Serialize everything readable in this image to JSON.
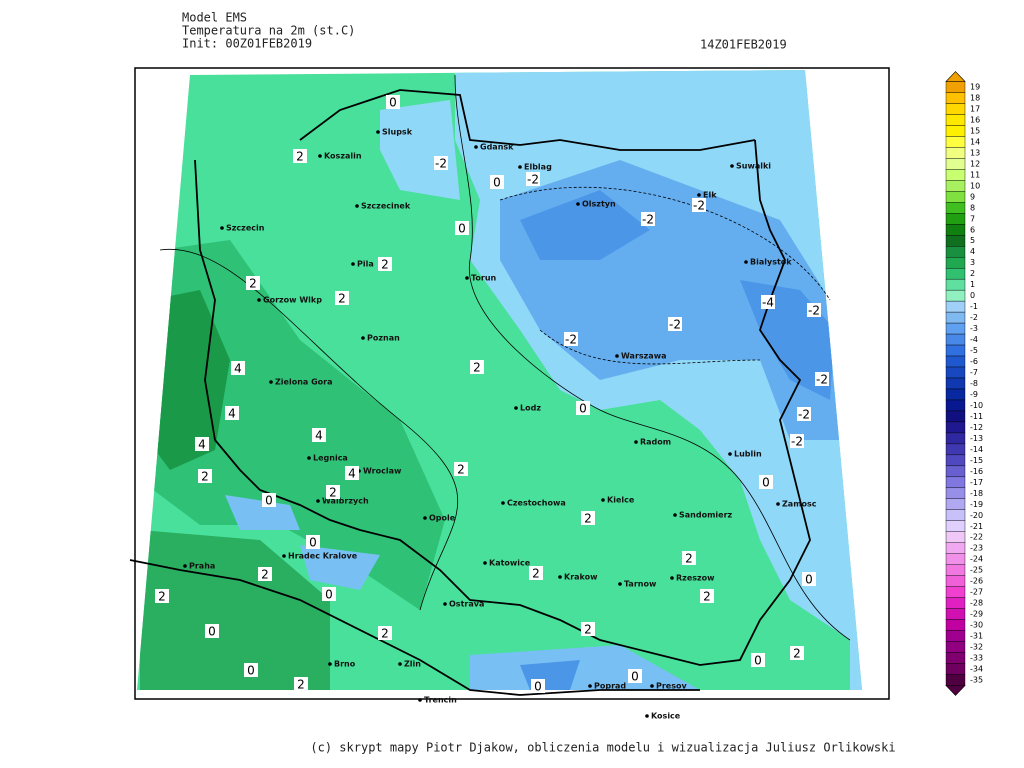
{
  "header": {
    "lines": [
      "Model EMS",
      "Temperatura na 2m (st.C)",
      "Init: 00Z01FEB2019"
    ],
    "valid_time": "14Z01FEB2019"
  },
  "map": {
    "cities": [
      "Slupsk",
      "Gdansk",
      "Koszalin",
      "Elblag",
      "Suwalki",
      "Olsztyn",
      "Elk",
      "Szczecinek",
      "Szczecin",
      "Pila",
      "Bialystok",
      "Torun",
      "Gorzow Wlkp",
      "Poznan",
      "Warszawa",
      "Zielona Gora",
      "Lodz",
      "Radom",
      "Legnica",
      "Wroclaw",
      "Lublin",
      "Walbrzych",
      "Czestochowa",
      "Kielce",
      "Opole",
      "Zamosc",
      "Sandomierz",
      "Hradec Kralove",
      "Katowice",
      "Krakow",
      "Tarnow",
      "Rzeszow",
      "Praha",
      "Ostrava",
      "Brno",
      "Zlin",
      "Poprad",
      "Presov",
      "Trencin",
      "Kosice"
    ],
    "contour_labels": [
      0,
      2,
      -2,
      0,
      -2,
      0,
      -2,
      -2,
      2,
      2,
      2,
      -4,
      -2,
      -2,
      -2,
      2,
      4,
      -2,
      0,
      4,
      -2,
      4,
      4,
      -2,
      2,
      4,
      2,
      0,
      0,
      2,
      2,
      0,
      2,
      2,
      2,
      0,
      2,
      0,
      2,
      0,
      2,
      2,
      0,
      0,
      2,
      2,
      0,
      0
    ]
  },
  "colorbar": {
    "labels": [
      19,
      18,
      17,
      16,
      15,
      14,
      13,
      12,
      11,
      10,
      9,
      8,
      7,
      6,
      5,
      4,
      3,
      2,
      1,
      0,
      -1,
      -2,
      -3,
      -4,
      -5,
      -6,
      -7,
      -8,
      -9,
      -10,
      -11,
      -12,
      -13,
      -14,
      -15,
      -16,
      -17,
      -18,
      -19,
      -20,
      -21,
      -22,
      -23,
      -24,
      -25,
      -26,
      -27,
      -28,
      -29,
      -30,
      -31,
      -32,
      -33,
      -34,
      -35
    ],
    "colors": [
      "#f0a000",
      "#ffc000",
      "#ffd800",
      "#ffe800",
      "#fff000",
      "#ffff40",
      "#f0ff80",
      "#e0ff90",
      "#c8ff70",
      "#a8f060",
      "#80e040",
      "#40c020",
      "#20a010",
      "#108010",
      "#107020",
      "#189040",
      "#20a850",
      "#30c070",
      "#60e0a0",
      "#90f0c0",
      "#a0d0f8",
      "#80b8f0",
      "#60a0f0",
      "#4888e8",
      "#3070e0",
      "#2058d0",
      "#1848c0",
      "#1038b0",
      "#0828a0",
      "#081890",
      "#101080",
      "#201890",
      "#3028a0",
      "#4038b0",
      "#5048c0",
      "#6860d0",
      "#8078e0",
      "#9890e8",
      "#b0a8f0",
      "#c8c0f8",
      "#e0d0ff",
      "#f0c8f8",
      "#f0a8f0",
      "#f090e8",
      "#f078e0",
      "#f060d8",
      "#f040d0",
      "#e020c0",
      "#d010b0",
      "#c000a0",
      "#a00090",
      "#900080",
      "#800070",
      "#700060",
      "#500040"
    ]
  },
  "footer": "(c) skrypt mapy Piotr Djakow, obliczenia modelu i wizualizacja Juliusz Orlikowski"
}
